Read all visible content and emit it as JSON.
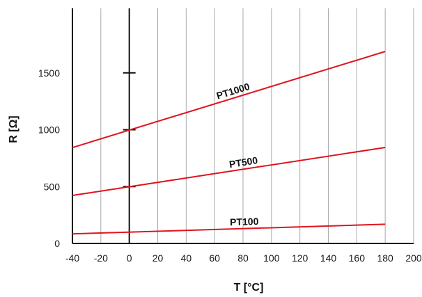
{
  "chart_data": {
    "type": "line",
    "xlabel": "T [°C]",
    "ylabel": "R [Ω]",
    "xlim": [
      -40,
      200
    ],
    "ylim": [
      0,
      2000
    ],
    "x_ticks": [
      "-40",
      "-20",
      "0",
      "20",
      "40",
      "60",
      "80",
      "100",
      "120",
      "140",
      "160",
      "180",
      "200"
    ],
    "y_ticks": [
      "0",
      "500",
      "1000",
      "1500"
    ],
    "grid": "vertical",
    "series": [
      {
        "name": "PT1000",
        "x": [
          -40,
          180
        ],
        "y": [
          843,
          1688
        ]
      },
      {
        "name": "PT500",
        "x": [
          -40,
          180
        ],
        "y": [
          422,
          844
        ]
      },
      {
        "name": "PT100",
        "x": [
          -40,
          180
        ],
        "y": [
          84,
          169
        ]
      }
    ],
    "colors": {
      "line": "#e0141f",
      "grid": "#a8a8a8",
      "axis": "#111111"
    }
  }
}
